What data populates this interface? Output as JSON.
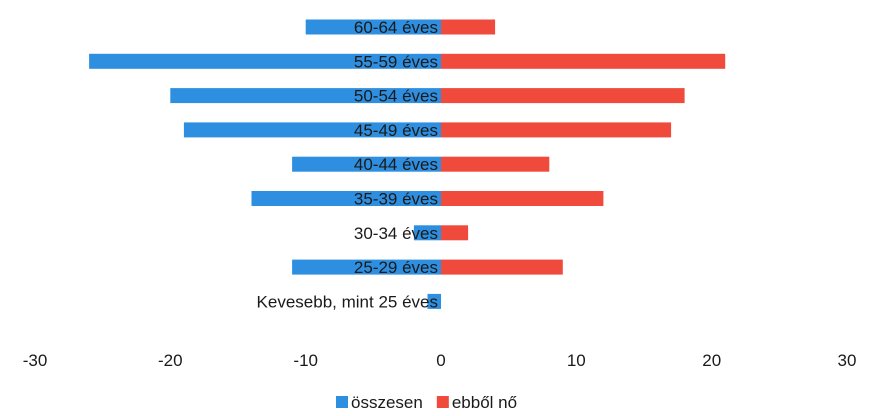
{
  "chart_data": {
    "type": "bar",
    "orientation": "horizontal",
    "categories": [
      "60-64 éves",
      "55-59 éves",
      "50-54 éves",
      "45-49 éves",
      "40-44 éves",
      "35-39 éves",
      "30-34 éves",
      "25-29 éves",
      "Kevesebb, mint 25 éves"
    ],
    "series": [
      {
        "name": "összesen",
        "color": "#2e8fe0",
        "values": [
          -10,
          -26,
          -20,
          -19,
          -11,
          -14,
          -2,
          -11,
          -1
        ]
      },
      {
        "name": "ebből nő",
        "color": "#f04a3c",
        "values": [
          4,
          21,
          18,
          17,
          8,
          12,
          2,
          9,
          0
        ]
      }
    ],
    "xlim": [
      -30,
      30
    ],
    "xticks": [
      "-30",
      "-20",
      "-10",
      "0",
      "10",
      "20",
      "30"
    ],
    "legend_position": "bottom",
    "grid": false
  }
}
